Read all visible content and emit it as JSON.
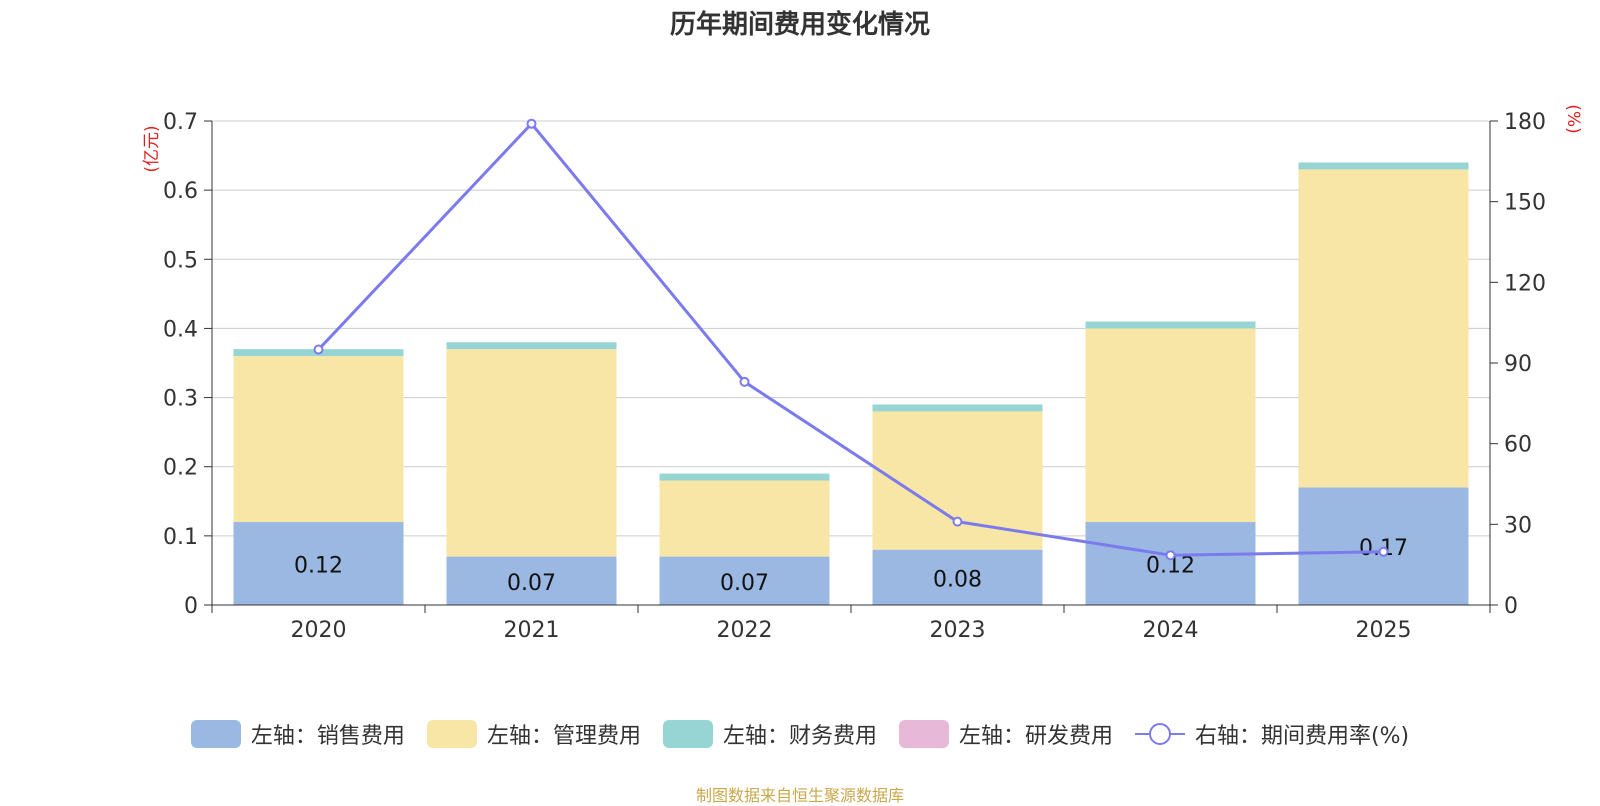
{
  "chart_data": {
    "type": "bar+line",
    "title": "历年期间费用变化情况",
    "categories": [
      "2020",
      "2021",
      "2022",
      "2023",
      "2024",
      "2025"
    ],
    "left_axis": {
      "unit_label": "(亿元)",
      "min": 0,
      "max": 0.7,
      "ticks": [
        "0",
        "0.1",
        "0.2",
        "0.3",
        "0.4",
        "0.5",
        "0.6",
        "0.7"
      ]
    },
    "right_axis": {
      "unit_label": "(%)",
      "min": 0,
      "max": 180,
      "ticks": [
        "0",
        "30",
        "60",
        "90",
        "120",
        "150",
        "180"
      ]
    },
    "series": [
      {
        "name": "销售费用",
        "axis": "left",
        "type": "bar",
        "color": "#9bb8e2",
        "values": [
          0.12,
          0.07,
          0.07,
          0.08,
          0.12,
          0.17
        ],
        "labels": [
          "0.12",
          "0.07",
          "0.07",
          "0.08",
          "0.12",
          "0.17"
        ]
      },
      {
        "name": "管理费用",
        "axis": "left",
        "type": "bar",
        "color": "#f7e6a6",
        "values": [
          0.24,
          0.3,
          0.11,
          0.2,
          0.28,
          0.46
        ]
      },
      {
        "name": "财务费用",
        "axis": "left",
        "type": "bar",
        "color": "#96d5d4",
        "values": [
          0.01,
          0.01,
          0.01,
          0.01,
          0.01,
          0.01
        ]
      },
      {
        "name": "研发费用",
        "axis": "left",
        "type": "bar",
        "color": "#e8b8d8",
        "values": [
          0,
          0,
          0,
          0,
          0,
          0
        ]
      },
      {
        "name": "期间费用率(%)",
        "axis": "right",
        "type": "line",
        "color": "#7b7bee",
        "values": [
          95,
          179,
          83,
          31,
          18.5,
          19.8
        ]
      }
    ]
  },
  "legend": [
    {
      "label": "左轴：销售费用",
      "color": "#9bb8e2",
      "kind": "box"
    },
    {
      "label": "左轴：管理费用",
      "color": "#f7e6a6",
      "kind": "box"
    },
    {
      "label": "左轴：财务费用",
      "color": "#96d5d4",
      "kind": "box"
    },
    {
      "label": "左轴：研发费用",
      "color": "#e8b8d8",
      "kind": "box"
    },
    {
      "label": "右轴：期间费用率(%)",
      "color": "#7b7bee",
      "kind": "line"
    }
  ],
  "source_note": "制图数据来自恒生聚源数据库"
}
